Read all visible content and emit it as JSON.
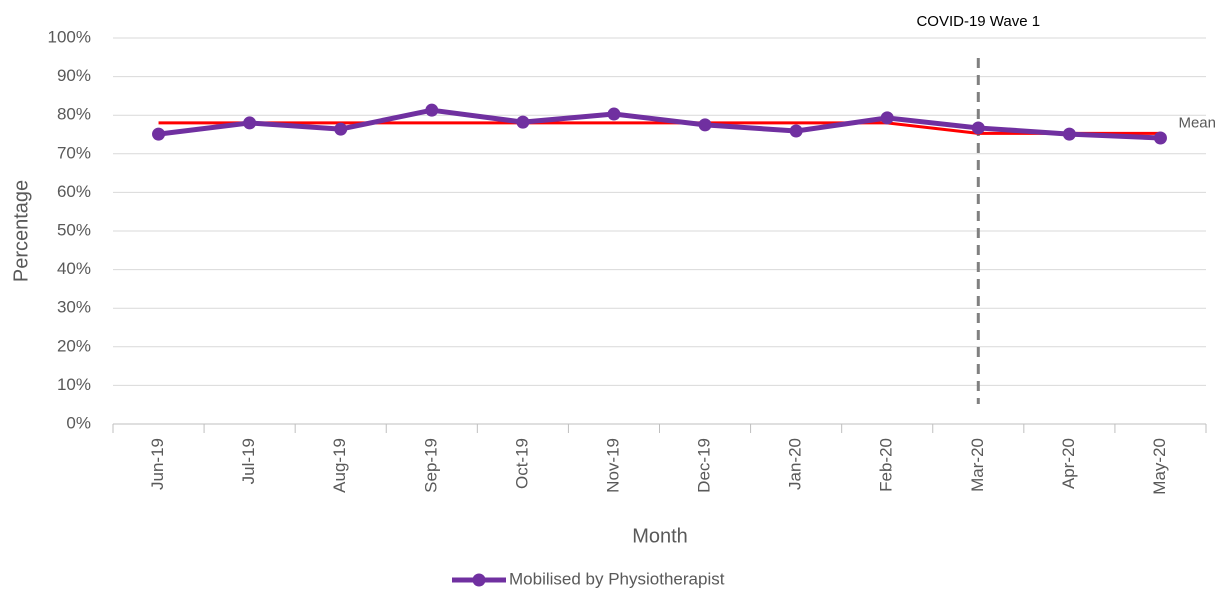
{
  "chart_data": {
    "type": "line",
    "x_label": "Month",
    "y_label": "Percentage",
    "categories": [
      "Jun-19",
      "Jul-19",
      "Aug-19",
      "Sep-19",
      "Oct-19",
      "Nov-19",
      "Dec-19",
      "Jan-20",
      "Feb-20",
      "Mar-20",
      "Apr-20",
      "May-20"
    ],
    "series": [
      {
        "name": "Mobilised by Physiotherapist",
        "color": "#7030a0",
        "values": [
          75.1,
          78,
          76.4,
          81.3,
          78.2,
          80.3,
          77.5,
          75.9,
          79.3,
          76.7,
          75.1,
          74.1
        ]
      },
      {
        "name": "Mean",
        "color": "#ff0000",
        "values": [
          78,
          78,
          78,
          78,
          78,
          78,
          78,
          78,
          78,
          75.3,
          75.3,
          75.3
        ]
      }
    ],
    "ylim": [
      0,
      100
    ],
    "yticks": [
      {
        "value": 0,
        "label": "0%"
      },
      {
        "value": 10,
        "label": "10%"
      },
      {
        "value": 20,
        "label": "20%"
      },
      {
        "value": 30,
        "label": "30%"
      },
      {
        "value": 40,
        "label": "40%"
      },
      {
        "value": 50,
        "label": "50%"
      },
      {
        "value": 60,
        "label": "60%"
      },
      {
        "value": 70,
        "label": "70%"
      },
      {
        "value": 80,
        "label": "80%"
      },
      {
        "value": 90,
        "label": "90%"
      },
      {
        "value": 100,
        "label": "100%"
      }
    ],
    "grid": true,
    "annotation": {
      "label": "COVID-19 Wave 1",
      "category": "Mar-20"
    }
  }
}
